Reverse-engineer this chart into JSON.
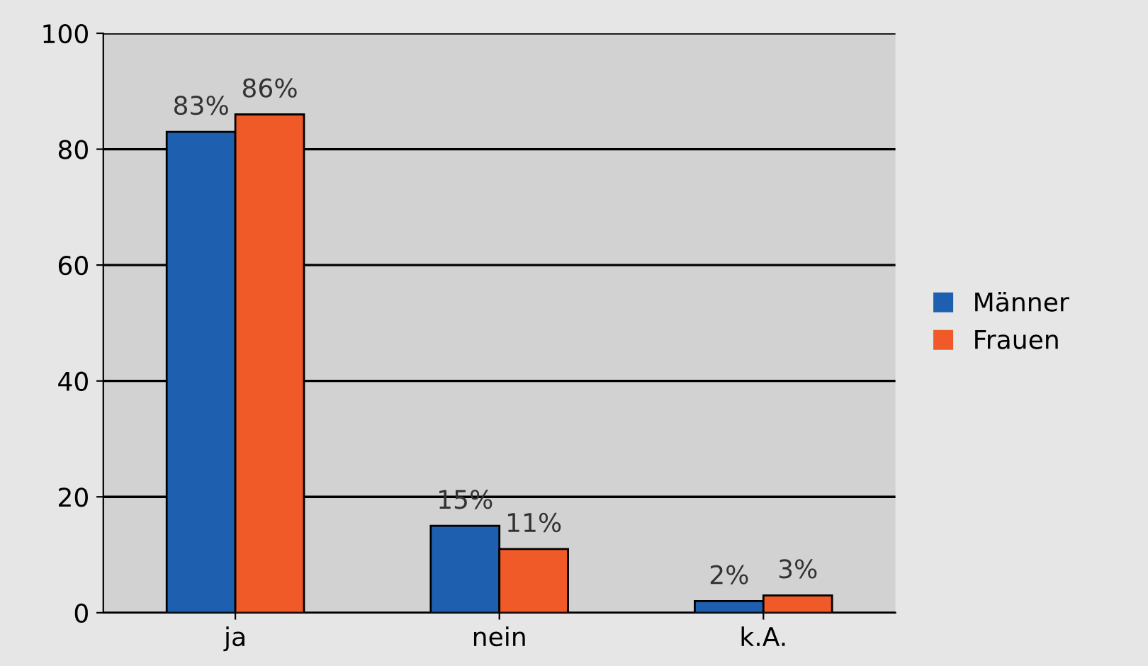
{
  "chart_data": {
    "type": "bar",
    "categories": [
      "ja",
      "nein",
      "k.A."
    ],
    "series": [
      {
        "name": "Männer",
        "color": "#1f5fb0",
        "values": [
          83,
          15,
          2
        ],
        "value_labels": [
          "83%",
          "15%",
          "2%"
        ]
      },
      {
        "name": "Frauen",
        "color": "#f05a28",
        "values": [
          86,
          11,
          3
        ],
        "value_labels": [
          "86%",
          "11%",
          "3%"
        ]
      }
    ],
    "ylim": [
      0,
      100
    ],
    "yticks": [
      0,
      20,
      40,
      60,
      80,
      100
    ],
    "grid": "y",
    "legend": "right"
  }
}
